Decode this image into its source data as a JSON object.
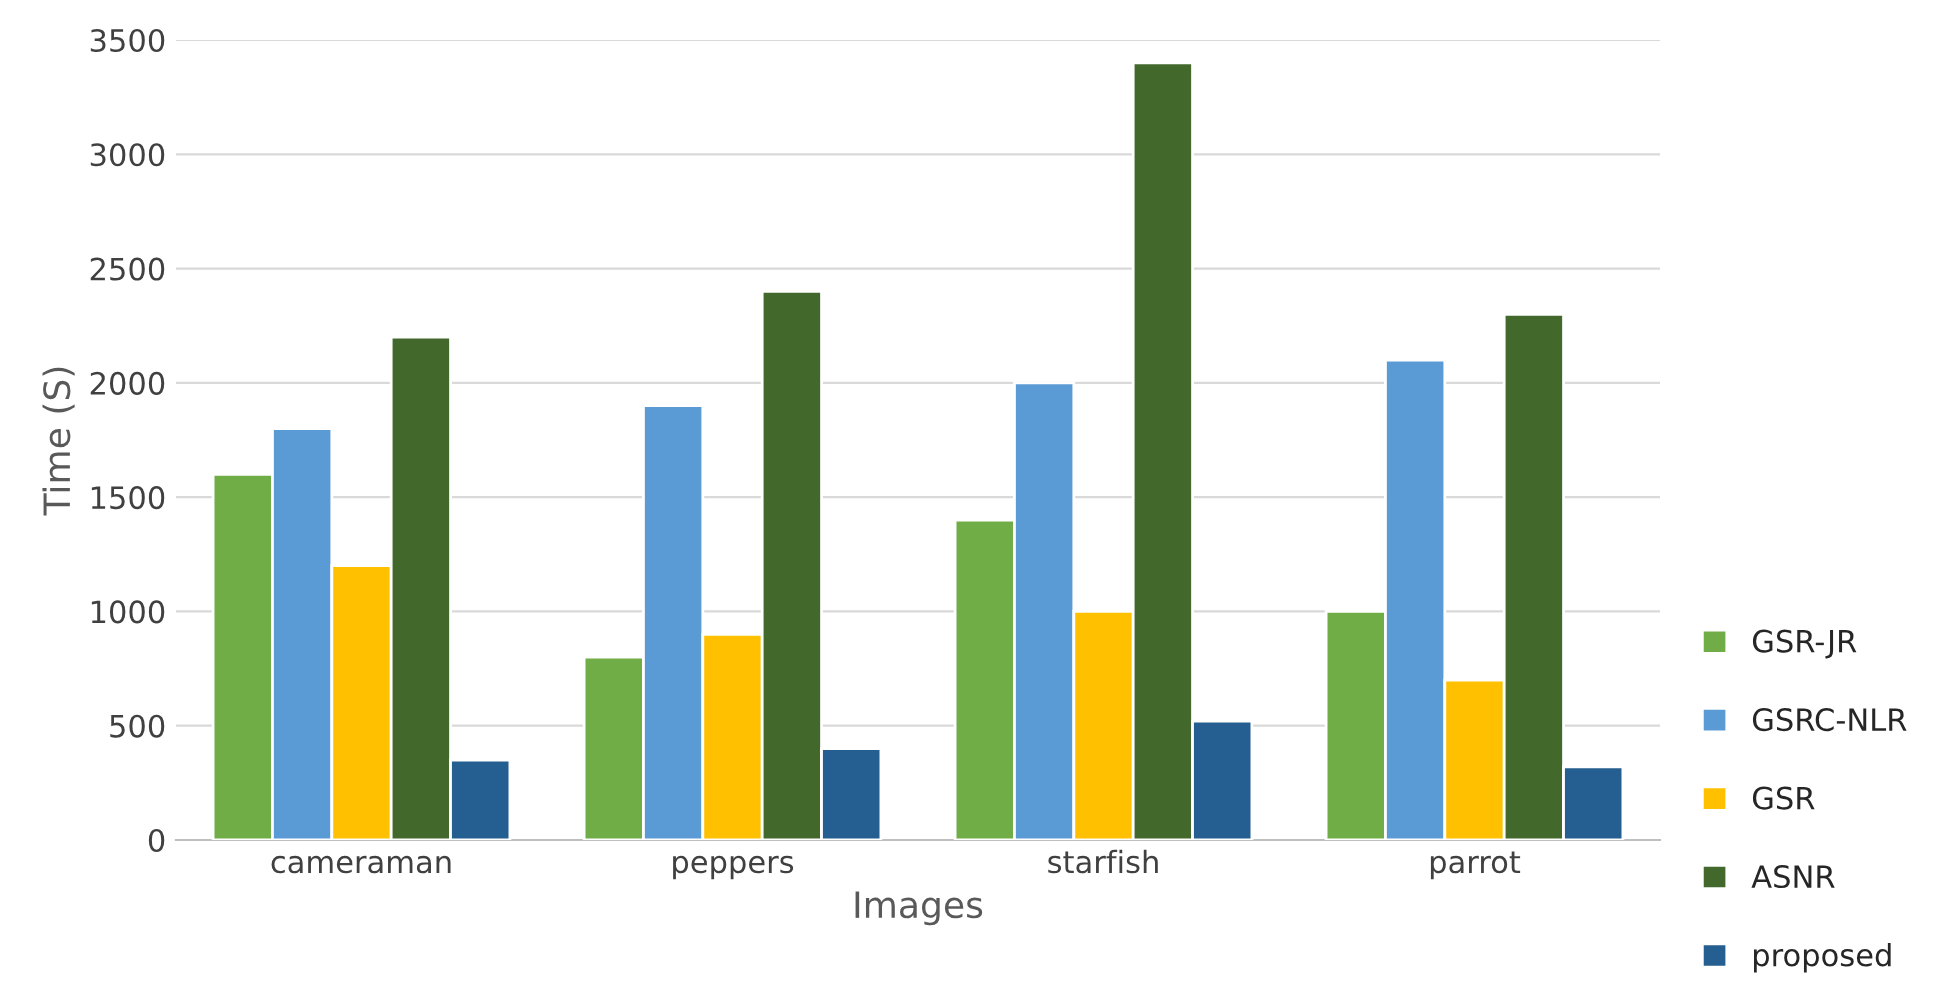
{
  "chart_data": {
    "type": "bar",
    "xlabel": "Images",
    "ylabel": "Time (S)",
    "categories": [
      "cameraman",
      "peppers",
      "starfish",
      "parrot"
    ],
    "series": [
      {
        "name": "GSR-JR",
        "color": "#70ad47",
        "values": [
          1600,
          800,
          1400,
          1000
        ]
      },
      {
        "name": "GSRC-NLR",
        "color": "#5b9bd5",
        "values": [
          1800,
          1900,
          2000,
          2100
        ]
      },
      {
        "name": "GSR",
        "color": "#ffc000",
        "values": [
          1200,
          900,
          1000,
          700
        ]
      },
      {
        "name": "ASNR",
        "color": "#43682b",
        "values": [
          2200,
          2400,
          3400,
          2300
        ]
      },
      {
        "name": "proposed",
        "color": "#255e91",
        "values": [
          350,
          400,
          520,
          320
        ]
      }
    ],
    "ylim": [
      0,
      3500
    ],
    "yticks": [
      0,
      500,
      1000,
      1500,
      2000,
      2500,
      3000,
      3500
    ],
    "grid": "y",
    "legend": "right"
  }
}
